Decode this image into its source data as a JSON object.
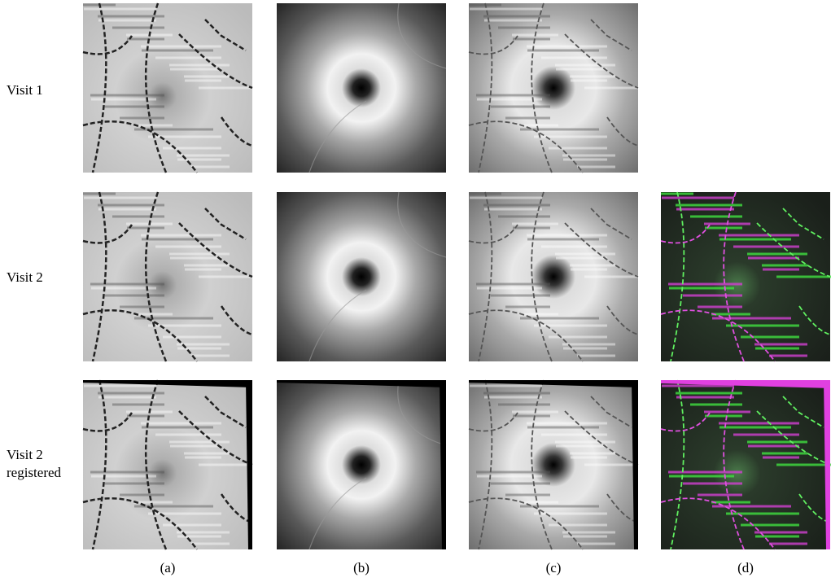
{
  "rows": [
    {
      "label": "Visit 1"
    },
    {
      "label": "Visit 2"
    },
    {
      "label": "Visit 2 registered"
    }
  ],
  "columns": [
    "(a)",
    "(b)",
    "(c)",
    "(d)"
  ]
}
